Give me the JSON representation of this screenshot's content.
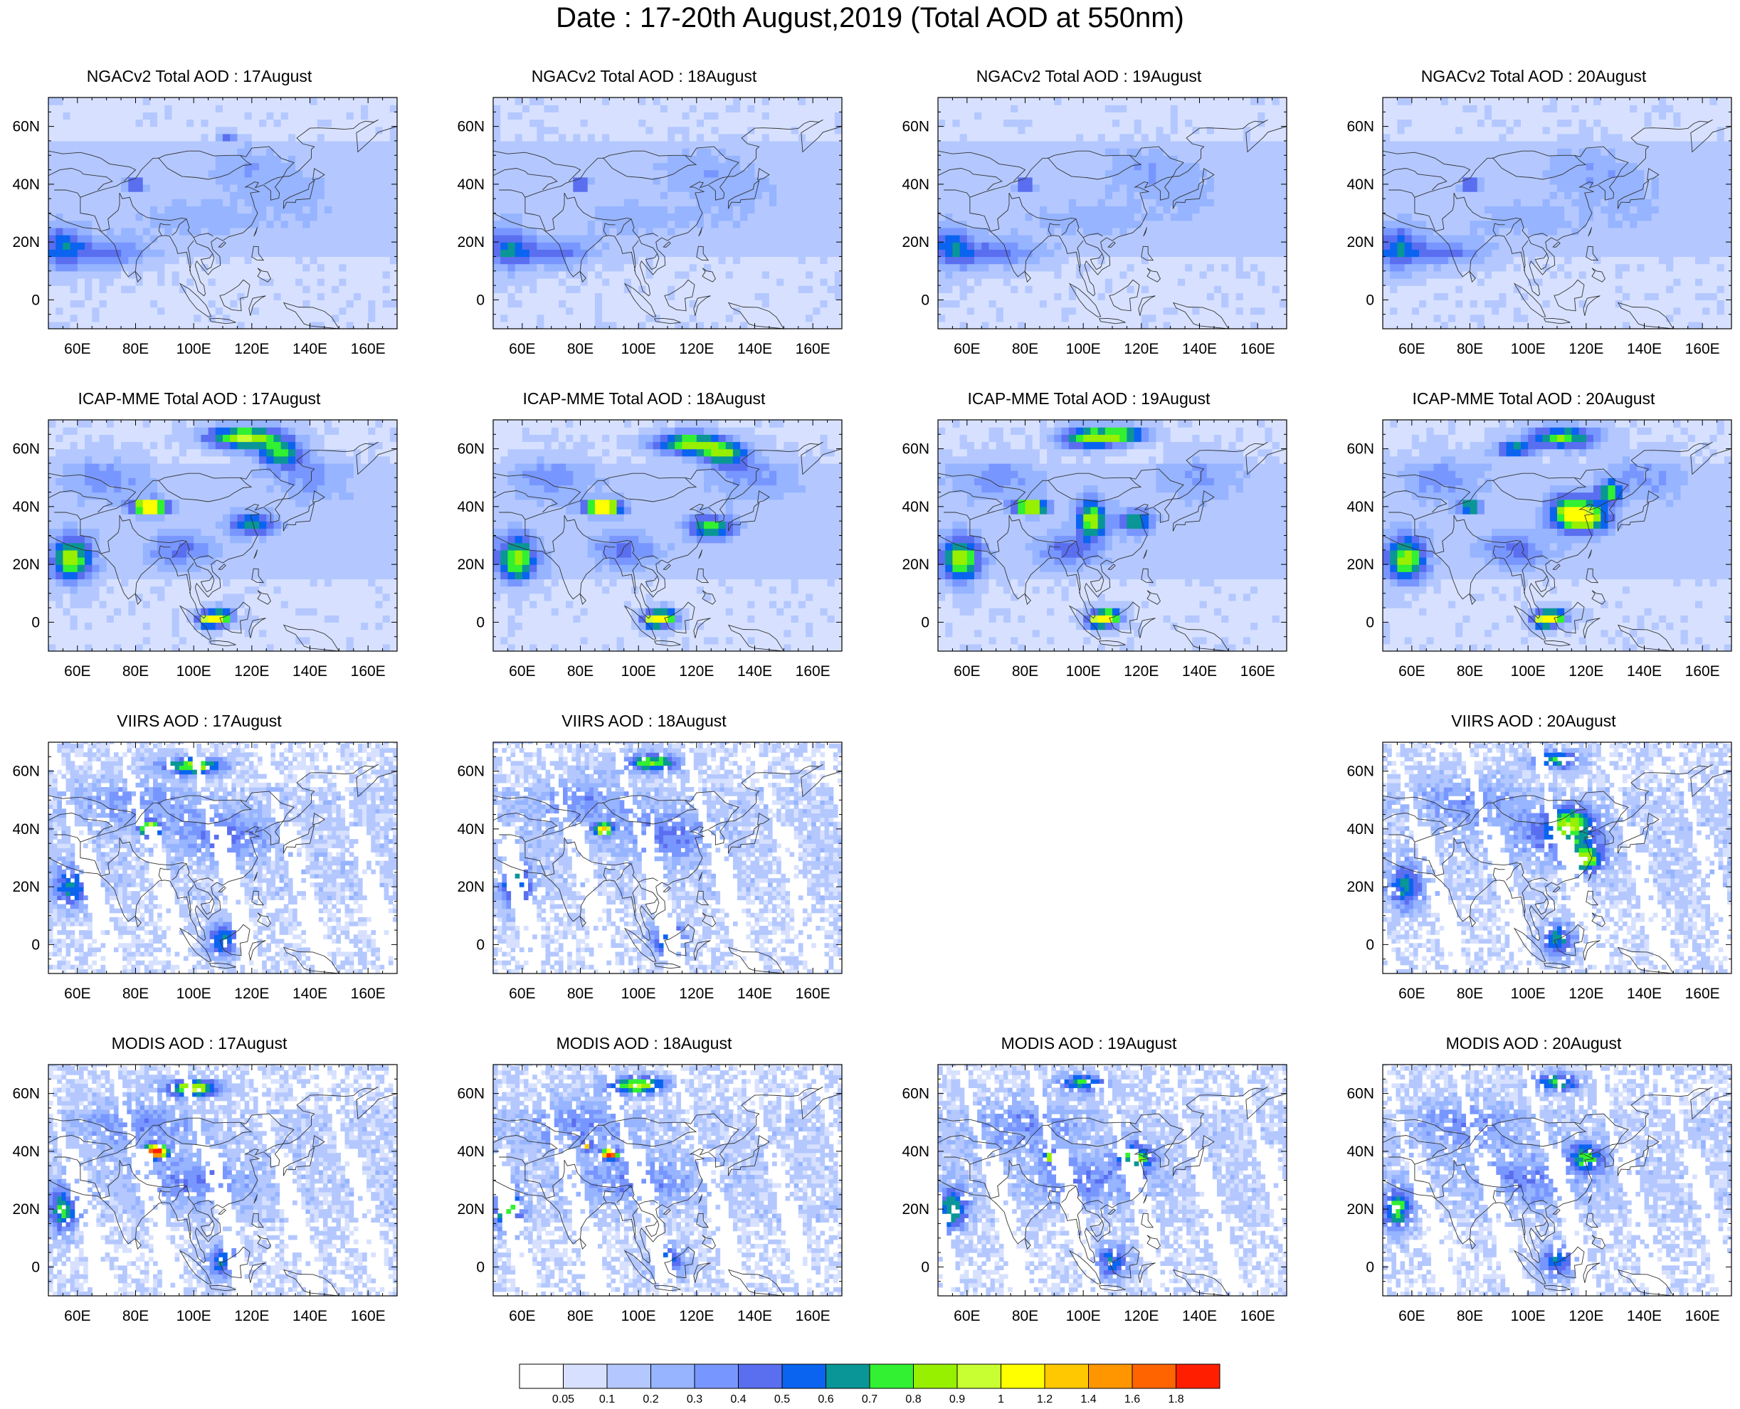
{
  "title": "Date : 17-20th August,2019 (Total AOD at 550nm)",
  "map_axes": {
    "lon_range": [
      50,
      170
    ],
    "lat_range": [
      -10,
      70
    ],
    "lon_ticks": [
      "60E",
      "80E",
      "100E",
      "120E",
      "140E",
      "160E"
    ],
    "lat_ticks": [
      "60N",
      "40N",
      "20N",
      "0"
    ]
  },
  "rows": [
    {
      "product": "NGACv2",
      "fill_pattern": "smooth",
      "panels": [
        {
          "title": "NGACv2 Total AOD : 17August",
          "visible": true
        },
        {
          "title": "NGACv2 Total AOD : 18August",
          "visible": true
        },
        {
          "title": "NGACv2 Total AOD : 19August",
          "visible": true
        },
        {
          "title": "NGACv2 Total AOD : 20August",
          "visible": true
        }
      ]
    },
    {
      "product": "ICAP-MME",
      "fill_pattern": "smooth",
      "panels": [
        {
          "title": "ICAP-MME Total AOD : 17August",
          "visible": true
        },
        {
          "title": "ICAP-MME Total AOD : 18August",
          "visible": true
        },
        {
          "title": "ICAP-MME Total AOD : 19August",
          "visible": true
        },
        {
          "title": "ICAP-MME Total AOD : 20August",
          "visible": true
        }
      ]
    },
    {
      "product": "VIIRS",
      "fill_pattern": "satellite-swath",
      "panels": [
        {
          "title": "VIIRS AOD : 17August",
          "visible": true
        },
        {
          "title": "VIIRS AOD : 18August",
          "visible": true
        },
        {
          "title": "",
          "visible": false
        },
        {
          "title": "VIIRS AOD : 20August",
          "visible": true
        }
      ]
    },
    {
      "product": "MODIS",
      "fill_pattern": "satellite-swath",
      "panels": [
        {
          "title": "MODIS AOD : 17August",
          "visible": true
        },
        {
          "title": "MODIS AOD : 18August",
          "visible": true
        },
        {
          "title": "MODIS AOD : 19August",
          "visible": true
        },
        {
          "title": "MODIS AOD : 20August",
          "visible": true
        }
      ]
    }
  ],
  "colorbar": {
    "labels": [
      "0.05",
      "0.1",
      "0.2",
      "0.3",
      "0.4",
      "0.5",
      "0.6",
      "0.7",
      "0.8",
      "0.9",
      "1",
      "1.2",
      "1.4",
      "1.6",
      "1.8"
    ],
    "colors": [
      "#ffffff",
      "#d7e1ff",
      "#b4c8ff",
      "#96b4ff",
      "#7896ff",
      "#5a6ef0",
      "#0a64f0",
      "#0a9696",
      "#32f032",
      "#96f000",
      "#c8ff32",
      "#ffff00",
      "#ffc800",
      "#ff9600",
      "#ff6400",
      "#ff1e00"
    ]
  }
}
